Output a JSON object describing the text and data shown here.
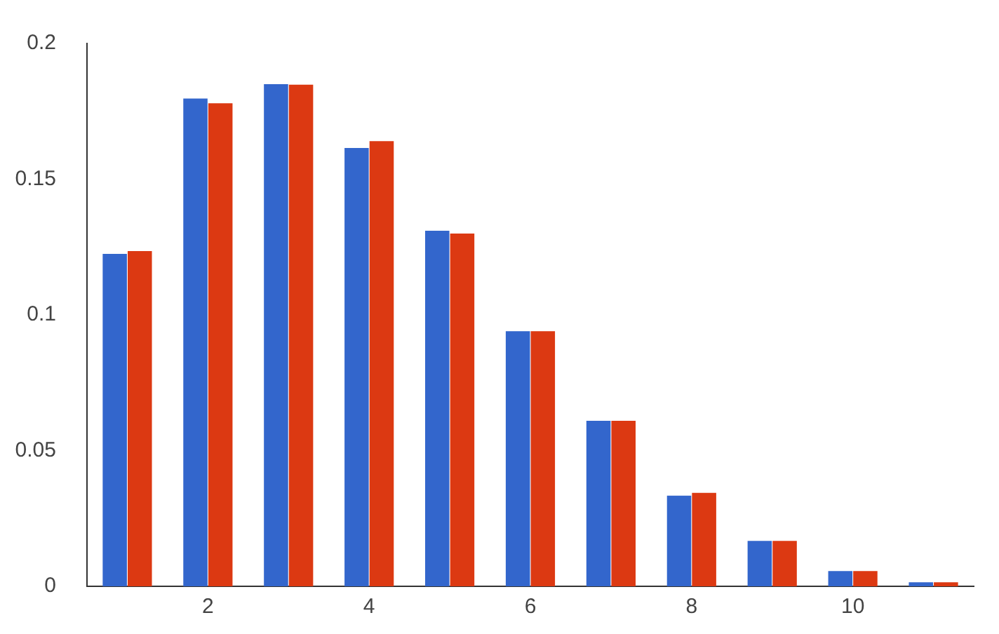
{
  "chart_data": {
    "type": "bar",
    "categories": [
      null,
      "2",
      null,
      "4",
      null,
      "6",
      null,
      "8",
      null,
      "10",
      null
    ],
    "series": [
      {
        "color": "#3366cc",
        "values": [
          0.1225,
          0.1797,
          0.185,
          0.1615,
          0.131,
          0.094,
          0.061,
          0.0334,
          0.0167,
          0.0056,
          0.0015
        ]
      },
      {
        "color": "#dc3912",
        "values": [
          0.1235,
          0.178,
          0.1848,
          0.164,
          0.13,
          0.094,
          0.061,
          0.0344,
          0.0167,
          0.0056,
          0.0015
        ]
      }
    ],
    "ylim": [
      0,
      0.2
    ],
    "yticks": [
      0,
      0.05,
      0.1,
      0.15,
      0.2
    ],
    "grid": false,
    "legend": false
  }
}
